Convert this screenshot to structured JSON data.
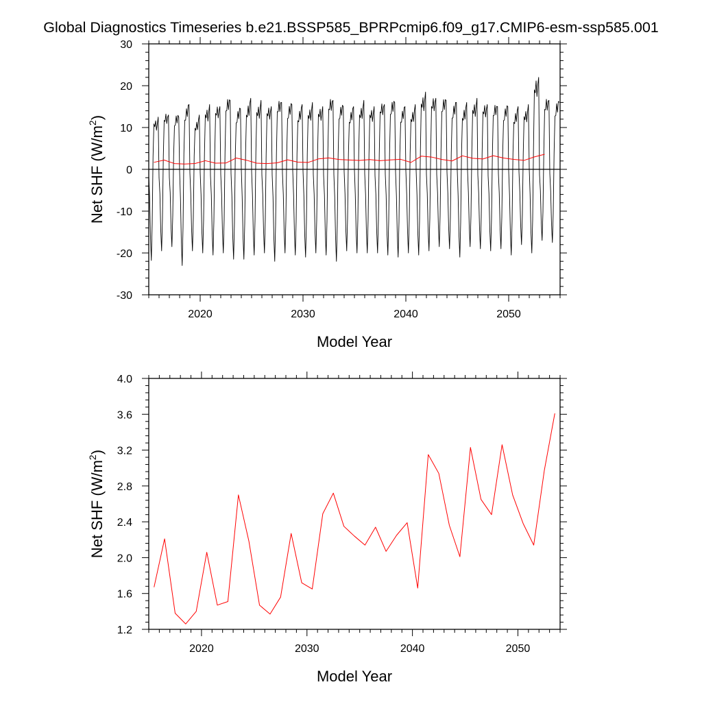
{
  "figure": {
    "title": "Global Diagnostics Timeseries b.e21.BSSP585_BPRPcmip6.f09_g17.CMIP6-esm-ssp585.001"
  },
  "colors": {
    "monthly": "#000000",
    "annual": "#ff0000",
    "zero_line": "#000000"
  },
  "chart_data": [
    {
      "type": "line",
      "title": "Global Diagnostics Timeseries b.e21.BSSP585_BPRPcmip6.f09_g17.CMIP6-esm-ssp585.001",
      "xlabel": "Model Year",
      "ylabel": "Net SHF (W/m²)",
      "ylabel_base": "Net SHF (W/m",
      "ylabel_sup": "2",
      "ylabel_tail": ")",
      "xlim": [
        2015,
        2055
      ],
      "ylim": [
        -30,
        30
      ],
      "x_ticks": [
        2020,
        2030,
        2040,
        2050
      ],
      "x_tick_labels": [
        "2020",
        "2030",
        "2040",
        "2050"
      ],
      "y_ticks": [
        -30,
        -20,
        -10,
        0,
        10,
        20,
        30
      ],
      "y_tick_labels": [
        "-30",
        "-20",
        "-10",
        "0",
        "10",
        "20",
        "30"
      ],
      "grid": false,
      "zero_line": true,
      "series": [
        {
          "color": "#000000",
          "style": "monthly",
          "start": 2015,
          "months": 480,
          "peak_values": [
            12.5,
            13.0,
            12.5,
            15.5,
            13.0,
            15.5,
            15.0,
            16.5,
            14.5,
            17.0,
            16.5,
            15.0,
            16.0,
            15.5,
            15.5,
            16.0,
            15.0,
            16.5,
            15.0,
            15.0,
            16.5,
            15.0,
            15.5,
            16.0,
            15.0,
            15.5,
            18.5,
            17.0,
            16.5,
            16.0,
            16.0,
            17.0,
            15.5,
            15.0,
            15.0,
            15.0,
            15.5,
            22.0,
            16.5,
            16.0
          ],
          "trough_values": [
            -21.8,
            -19.5,
            -18.5,
            -23.0,
            -19.5,
            -20.0,
            -20.5,
            -20.0,
            -21.5,
            -21.5,
            -20.5,
            -20.0,
            -22.0,
            -20.0,
            -20.5,
            -21.0,
            -20.0,
            -20.5,
            -22.0,
            -19.5,
            -20.0,
            -20.0,
            -20.0,
            -20.5,
            -21.0,
            -20.0,
            -20.5,
            -19.5,
            -18.5,
            -19.0,
            -21.0,
            -18.5,
            -19.0,
            -19.5,
            -19.0,
            -20.5,
            -18.0,
            -20.0,
            -17.0,
            -17.5
          ]
        },
        {
          "color": "#ff0000",
          "style": "annual",
          "x": [
            2015.5,
            2016.5,
            2017.5,
            2018.5,
            2019.5,
            2020.5,
            2021.5,
            2022.5,
            2023.5,
            2024.5,
            2025.5,
            2026.5,
            2027.5,
            2028.5,
            2029.5,
            2030.5,
            2031.5,
            2032.5,
            2033.5,
            2034.5,
            2035.5,
            2036.5,
            2037.5,
            2038.5,
            2039.5,
            2040.5,
            2041.5,
            2042.5,
            2043.5,
            2044.5,
            2045.5,
            2046.5,
            2047.5,
            2048.5,
            2049.5,
            2050.5,
            2051.5,
            2052.5,
            2053.5
          ],
          "y": [
            1.67,
            2.21,
            1.38,
            1.26,
            1.4,
            2.06,
            1.47,
            1.51,
            2.7,
            2.18,
            1.47,
            1.37,
            1.56,
            2.27,
            1.72,
            1.65,
            2.49,
            2.72,
            2.35,
            2.24,
            2.14,
            2.34,
            2.07,
            2.25,
            2.39,
            1.66,
            3.15,
            2.94,
            2.36,
            2.01,
            3.23,
            2.65,
            2.48,
            3.26,
            2.7,
            2.38,
            2.14,
            2.97,
            3.61
          ]
        }
      ]
    },
    {
      "type": "line",
      "xlabel": "Model Year",
      "ylabel": "Net SHF (W/m²)",
      "ylabel_base": "Net SHF (W/m",
      "ylabel_sup": "2",
      "ylabel_tail": ")",
      "xlim": [
        2015,
        2054
      ],
      "ylim": [
        1.2,
        4.0
      ],
      "x_ticks": [
        2020,
        2030,
        2040,
        2050
      ],
      "x_tick_labels": [
        "2020",
        "2030",
        "2040",
        "2050"
      ],
      "y_ticks": [
        1.2,
        1.6,
        2.0,
        2.4,
        2.8,
        3.2,
        3.6,
        4.0
      ],
      "y_tick_labels": [
        "1.2",
        "1.6",
        "2.0",
        "2.4",
        "2.8",
        "3.2",
        "3.6",
        "4.0"
      ],
      "grid": false,
      "series": [
        {
          "color": "#ff0000",
          "style": "annual",
          "x": [
            2015.5,
            2016.5,
            2017.5,
            2018.5,
            2019.5,
            2020.5,
            2021.5,
            2022.5,
            2023.5,
            2024.5,
            2025.5,
            2026.5,
            2027.5,
            2028.5,
            2029.5,
            2030.5,
            2031.5,
            2032.5,
            2033.5,
            2034.5,
            2035.5,
            2036.5,
            2037.5,
            2038.5,
            2039.5,
            2040.5,
            2041.5,
            2042.5,
            2043.5,
            2044.5,
            2045.5,
            2046.5,
            2047.5,
            2048.5,
            2049.5,
            2050.5,
            2051.5,
            2052.5,
            2053.5
          ],
          "y": [
            1.67,
            2.21,
            1.38,
            1.26,
            1.4,
            2.06,
            1.47,
            1.51,
            2.7,
            2.18,
            1.47,
            1.37,
            1.56,
            2.27,
            1.72,
            1.65,
            2.49,
            2.72,
            2.35,
            2.24,
            2.14,
            2.34,
            2.07,
            2.25,
            2.39,
            1.66,
            3.15,
            2.94,
            2.36,
            2.01,
            3.23,
            2.65,
            2.48,
            3.26,
            2.7,
            2.38,
            2.14,
            2.97,
            3.61
          ]
        }
      ]
    }
  ]
}
